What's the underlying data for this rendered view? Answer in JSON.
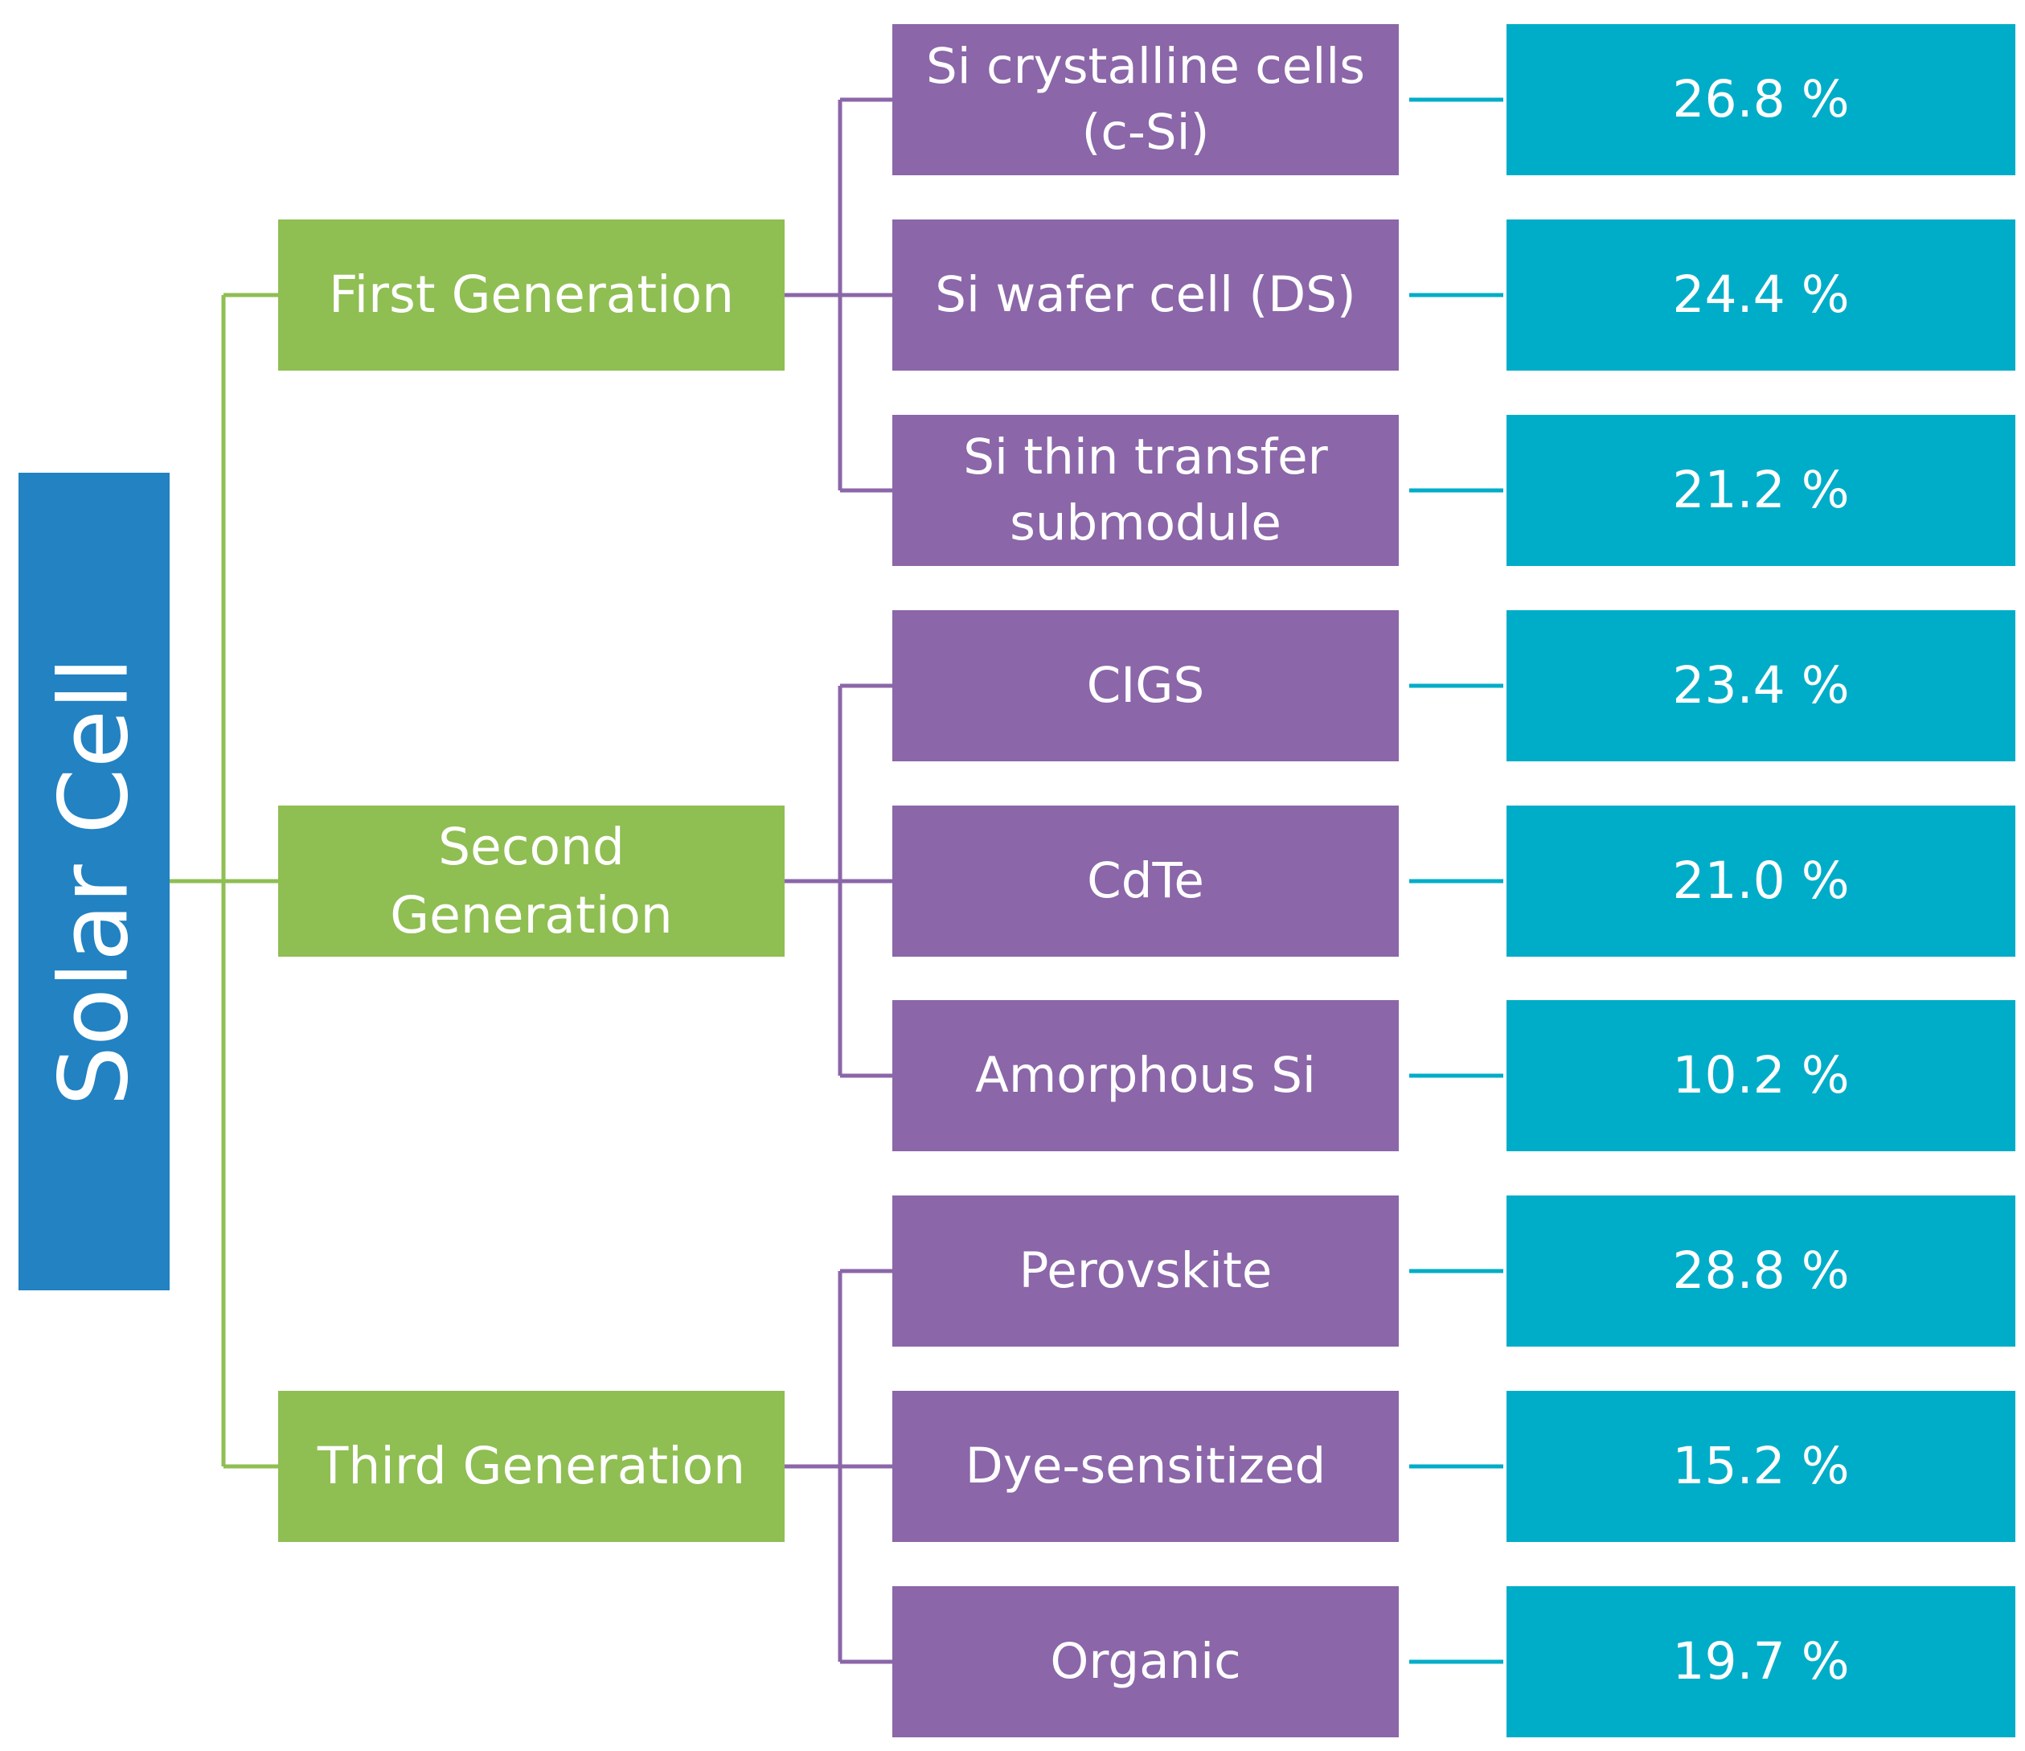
{
  "root": {
    "label": "Solar Cell"
  },
  "generations": [
    {
      "label": "First Generation"
    },
    {
      "label": "Second Generation"
    },
    {
      "label": "Third Generation"
    }
  ],
  "cell_types": [
    {
      "generation": 0,
      "label": "Si crystalline cells (c-Si)",
      "efficiency": "26.8 %"
    },
    {
      "generation": 0,
      "label": "Si wafer cell (DS)",
      "efficiency": "24.4 %"
    },
    {
      "generation": 0,
      "label": "Si thin transfer submodule",
      "efficiency": "21.2 %"
    },
    {
      "generation": 1,
      "label": "CIGS",
      "efficiency": "23.4 %"
    },
    {
      "generation": 1,
      "label": "CdTe",
      "efficiency": "21.0 %"
    },
    {
      "generation": 1,
      "label": "Amorphous Si",
      "efficiency": "10.2 %"
    },
    {
      "generation": 2,
      "label": "Perovskite",
      "efficiency": "28.8 %"
    },
    {
      "generation": 2,
      "label": "Dye-sensitized",
      "efficiency": "15.2 %"
    },
    {
      "generation": 2,
      "label": "Organic",
      "efficiency": "19.7 %"
    }
  ],
  "colors": {
    "root": "#2282c2",
    "generation": "#8fbe52",
    "cell_type": "#8b66a8",
    "efficiency": "#00adc8",
    "generation_connector": "#8fbe52",
    "type_connector": "#8b66a8",
    "efficiency_connector": "#00adc8"
  }
}
